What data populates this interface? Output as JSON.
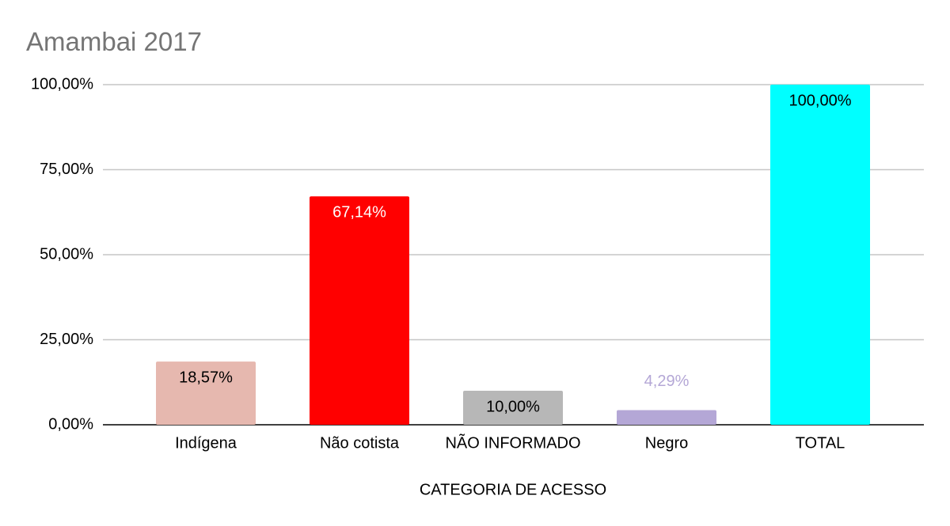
{
  "chart_data": {
    "type": "bar",
    "title": "Amambai 2017",
    "x_label": "CATEGORIA DE ACESSO",
    "categories": [
      "Indígena",
      "Não cotista",
      "NÃO INFORMADO",
      "Negro",
      "TOTAL"
    ],
    "values": [
      18.57,
      67.14,
      10.0,
      4.29,
      100.0
    ],
    "value_labels": [
      "18,57%",
      "67,14%",
      "10,00%",
      "4,29%",
      "100,00%"
    ],
    "colors": [
      "#e6b8af",
      "#ff0000",
      "#b7b7b7",
      "#b4a7d6",
      "#00ffff"
    ],
    "value_label_colors": [
      "#000000",
      "#ffffff",
      "#000000",
      "#b4a7d6",
      "#000000"
    ],
    "ylim": [
      0,
      100
    ],
    "yticks": [
      {
        "value": 0,
        "label": "0,00%"
      },
      {
        "value": 25,
        "label": "25,00%"
      },
      {
        "value": 50,
        "label": "50,00%"
      },
      {
        "value": 75,
        "label": "75,00%"
      },
      {
        "value": 100,
        "label": "100,00%"
      }
    ],
    "grid": true
  }
}
